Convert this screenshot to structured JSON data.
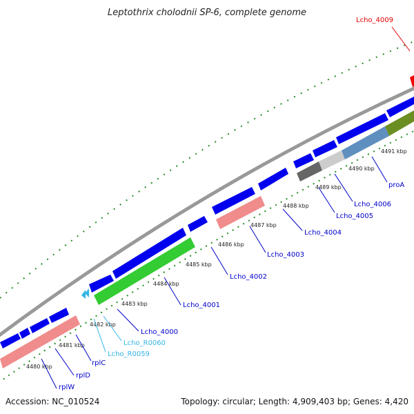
{
  "title": "Leptothrix cholodnii SP-6, complete genome",
  "footer": {
    "accession": "Accession: NC_010524",
    "topology": "Topology: circular; Length: 4,909,403 bp; Genes: 4,420"
  },
  "colors": {
    "forward_cds": "#0000ee",
    "rrna_salmon": "#f08c8c",
    "green_track": "#33cc33",
    "gray_track": "#666666",
    "lightgray_track": "#cccccc",
    "steelblue_track": "#5f8fbf",
    "olive_track": "#6b8e23",
    "red_track": "#ee0000",
    "tick_green": "#228b22",
    "backbone": "#888888",
    "label_blue": "#0000cc",
    "label_cyan": "#33b5e5",
    "label_red": "#dd0000"
  },
  "ticks": [
    {
      "label": "4480 kbp"
    },
    {
      "label": "4481 kbp"
    },
    {
      "label": "4482 kbp"
    },
    {
      "label": "4483 kbp"
    },
    {
      "label": "4484 kbp"
    },
    {
      "label": "4485 kbp"
    },
    {
      "label": "4486 kbp"
    },
    {
      "label": "4487 kbp"
    },
    {
      "label": "4488 kbp"
    },
    {
      "label": "4489 kbp"
    },
    {
      "label": "4490 kbp"
    },
    {
      "label": "4491 kbp"
    }
  ],
  "genes": [
    {
      "name": "rplW",
      "color": "blue"
    },
    {
      "name": "rplD",
      "color": "blue"
    },
    {
      "name": "rplC",
      "color": "blue"
    },
    {
      "name": "Lcho_R0059",
      "color": "cyan"
    },
    {
      "name": "Lcho_R0060",
      "color": "cyan"
    },
    {
      "name": "Lcho_4000",
      "color": "blue"
    },
    {
      "name": "Lcho_4001",
      "color": "blue"
    },
    {
      "name": "Lcho_4002",
      "color": "blue"
    },
    {
      "name": "Lcho_4003",
      "color": "blue"
    },
    {
      "name": "Lcho_4004",
      "color": "blue"
    },
    {
      "name": "Lcho_4005",
      "color": "blue"
    },
    {
      "name": "Lcho_4006",
      "color": "blue"
    },
    {
      "name": "proA",
      "color": "blue"
    },
    {
      "name": "Lcho_4009",
      "color": "red"
    }
  ]
}
